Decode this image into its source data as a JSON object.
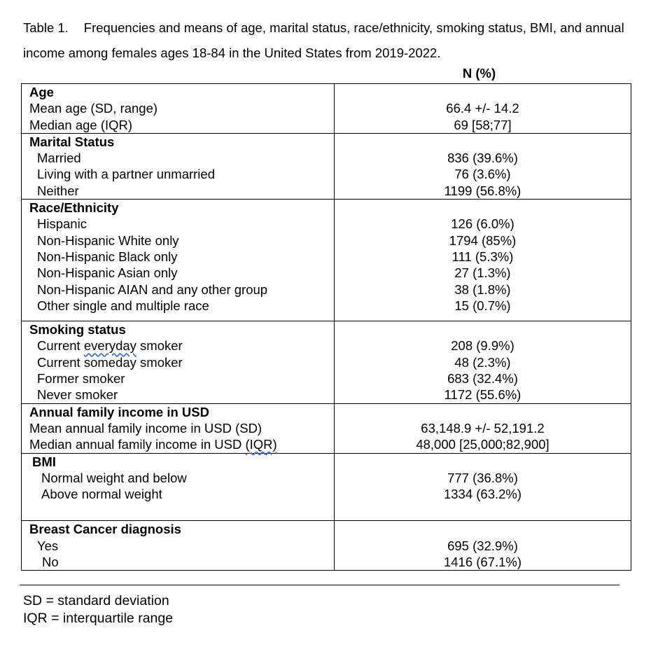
{
  "caption": {
    "label": "Table 1.",
    "text": "Frequencies and means of age, marital status, race/ethnicity, smoking status, BMI, and annual income among females ages 18-84 in the United States from 2019-2022."
  },
  "column_header": "N (%)",
  "sections": {
    "age": {
      "title": "Age",
      "rows": [
        {
          "label": "Mean age (SD, range)",
          "value": "66.4 +/- 14.2"
        },
        {
          "label": "Median age (IQR)",
          "value": "69 [58;77]"
        }
      ]
    },
    "marital": {
      "title": "Marital Status",
      "rows": [
        {
          "label": "Married",
          "value": "836 (39.6%)"
        },
        {
          "label": "Living with a partner unmarried",
          "value": "76 (3.6%)"
        },
        {
          "label": "Neither",
          "value": "1199 (56.8%)"
        }
      ]
    },
    "race": {
      "title": "Race/Ethnicity",
      "rows": [
        {
          "label": "Hispanic",
          "value": "126 (6.0%)"
        },
        {
          "label": "Non-Hispanic White only",
          "value": "1794 (85%)"
        },
        {
          "label": "Non-Hispanic Black only",
          "value": "111 (5.3%)"
        },
        {
          "label": "Non-Hispanic Asian only",
          "value": "27 (1.3%)"
        },
        {
          "label": "Non-Hispanic AIAN and any other group",
          "value": "38 (1.8%)"
        },
        {
          "label": "Other single and multiple race",
          "value": "15 (0.7%)"
        }
      ]
    },
    "smoking": {
      "title": "Smoking status",
      "rows": [
        {
          "label_pre": "Current ",
          "label_mark": "everyday",
          "label_post": " smoker",
          "value": "208 (9.9%)"
        },
        {
          "label": "Current someday smoker",
          "value": "48 (2.3%)"
        },
        {
          "label": "Former smoker",
          "value": "683 (32.4%)"
        },
        {
          "label": "Never smoker",
          "value": "1172 (55.6%)"
        }
      ]
    },
    "income": {
      "title": "Annual family income in USD",
      "rows": [
        {
          "label": "Mean annual family income in USD (SD)",
          "value": "63,148.9 +/- 52,191.2"
        },
        {
          "label_pre": "Median annual family income in USD ",
          "label_mark": "(IQR)",
          "value": "48,000 [25,000;82,900]"
        }
      ]
    },
    "bmi": {
      "title": "BMI",
      "rows": [
        {
          "label": "Normal weight and below",
          "value": "777 (36.8%)"
        },
        {
          "label": "Above normal weight",
          "value": "1334 (63.2%)"
        }
      ]
    },
    "breast": {
      "title": "Breast Cancer diagnosis",
      "rows": [
        {
          "label": "Yes",
          "value": "695 (32.9%)"
        },
        {
          "label": "No",
          "value": "1416 (67.1%)"
        }
      ]
    }
  },
  "notes": [
    "SD = standard deviation",
    "IQR = interquartile range"
  ]
}
